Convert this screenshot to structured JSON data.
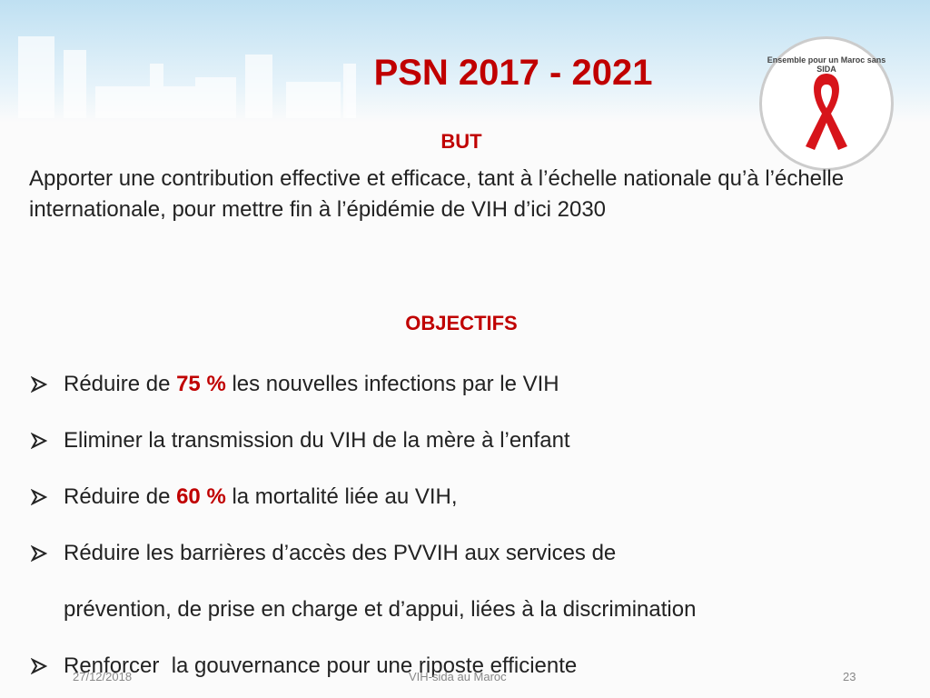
{
  "header": {
    "title": "PSN 2017 - 2021",
    "logo_text": "Ensemble pour un Maroc sans SIDA"
  },
  "goal": {
    "heading": "BUT",
    "text": "Apporter une contribution effective et efficace, tant à l’échelle nationale qu’à l’échelle internationale, pour mettre fin à l’épidémie de VIH d’ici 2030"
  },
  "objectives": {
    "heading": "OBJECTIFS",
    "items": [
      {
        "lines": [
          [
            {
              "text": "Réduire de "
            },
            {
              "text": "75 %",
              "color": "#c00000"
            },
            {
              "text": " les nouvelles infections par le VIH"
            }
          ]
        ]
      },
      {
        "lines": [
          [
            {
              "text": "Eliminer la transmission du VIH de la mère à l’enfant"
            }
          ]
        ]
      },
      {
        "lines": [
          [
            {
              "text": "Réduire de "
            },
            {
              "text": "60 %",
              "color": "#c00000"
            },
            {
              "text": " la mortalité liée au VIH,"
            }
          ]
        ]
      },
      {
        "lines": [
          [
            {
              "text": "Réduire les barrières d’accès des PVVIH aux services de"
            }
          ],
          [
            {
              "text": "prévention, de prise en charge et d’appui, liées à la discrimination"
            }
          ]
        ]
      },
      {
        "lines": [
          [
            {
              "text": "Renforcer  la gouvernance pour une riposte efficiente"
            }
          ]
        ]
      }
    ]
  },
  "footer": {
    "date": "27/12/2018",
    "center": "VIH-sida au Maroc",
    "page": "23"
  }
}
